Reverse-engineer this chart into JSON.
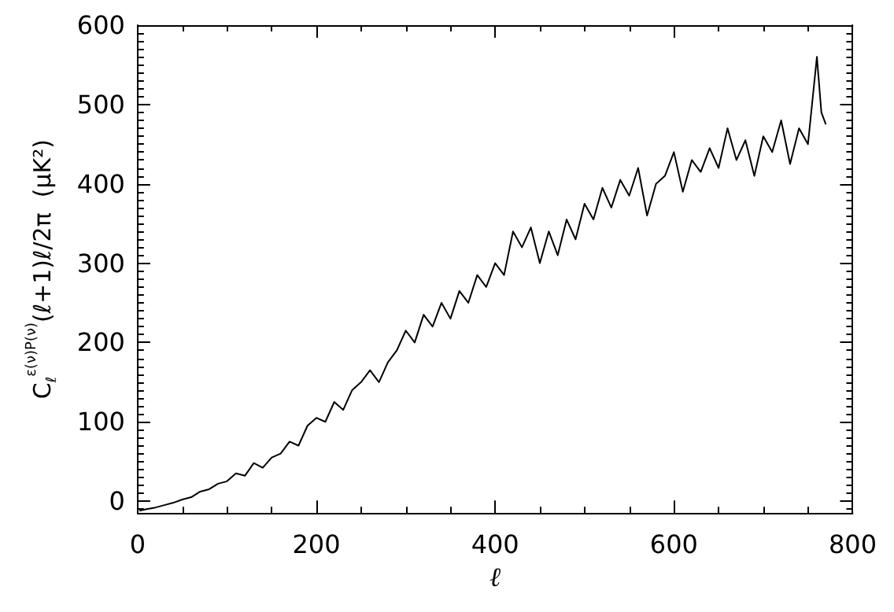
{
  "chart_data": {
    "type": "line",
    "xlabel": "ℓ",
    "ylabel": "C$_{ℓ}$$^{ε(ν)P(ν)}$(ℓ+1)ℓ/2π  (μK²)",
    "x": [
      2,
      10,
      20,
      30,
      40,
      50,
      60,
      70,
      80,
      90,
      100,
      110,
      120,
      130,
      140,
      150,
      160,
      170,
      180,
      190,
      200,
      210,
      220,
      230,
      240,
      250,
      260,
      270,
      280,
      290,
      300,
      310,
      320,
      330,
      340,
      350,
      360,
      370,
      380,
      390,
      400,
      410,
      420,
      430,
      440,
      450,
      460,
      470,
      480,
      490,
      500,
      510,
      520,
      530,
      540,
      550,
      560,
      570,
      580,
      590,
      600,
      610,
      620,
      630,
      640,
      650,
      660,
      670,
      680,
      690,
      700,
      710,
      720,
      730,
      740,
      750,
      760,
      765,
      770
    ],
    "series": [
      {
        "color": "#000000",
        "values": [
          -12,
          -10,
          -8,
          -5,
          -2,
          2,
          5,
          12,
          15,
          22,
          25,
          35,
          32,
          48,
          42,
          55,
          60,
          75,
          70,
          95,
          105,
          100,
          125,
          115,
          140,
          150,
          165,
          150,
          175,
          190,
          215,
          200,
          235,
          220,
          250,
          230,
          265,
          250,
          285,
          270,
          300,
          285,
          340,
          320,
          345,
          300,
          340,
          310,
          355,
          330,
          375,
          355,
          395,
          370,
          405,
          385,
          420,
          360,
          400,
          410,
          440,
          390,
          430,
          415,
          445,
          420,
          470,
          430,
          455,
          410,
          460,
          440,
          480,
          425,
          470,
          450,
          560,
          490,
          475
        ]
      }
    ],
    "xlim": [
      0,
      800
    ],
    "xticks": [
      0,
      200,
      400,
      600,
      800
    ],
    "ylim": [
      -15,
      600
    ],
    "yticks": [
      0,
      100,
      200,
      300,
      400,
      500,
      600
    ],
    "grid": false,
    "marker": "none",
    "line_style": "solid"
  }
}
